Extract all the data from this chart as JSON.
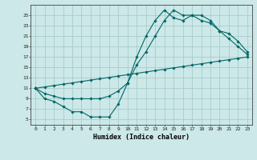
{
  "xlabel": "Humidex (Indice chaleur)",
  "bg_color": "#cce8e8",
  "grid_color": "#aacccc",
  "line_color": "#006666",
  "xlim": [
    -0.5,
    23.5
  ],
  "ylim": [
    4,
    27
  ],
  "xticks": [
    0,
    1,
    2,
    3,
    4,
    5,
    6,
    7,
    8,
    9,
    10,
    11,
    12,
    13,
    14,
    15,
    16,
    17,
    18,
    19,
    20,
    21,
    22,
    23
  ],
  "yticks": [
    5,
    7,
    9,
    11,
    13,
    15,
    17,
    19,
    21,
    23,
    25
  ],
  "curve1_x": [
    0,
    1,
    2,
    3,
    4,
    5,
    6,
    7,
    8,
    9,
    10,
    11,
    12,
    13,
    14,
    15,
    16,
    17,
    18,
    19,
    20,
    21,
    22,
    23
  ],
  "curve1_y": [
    11,
    9,
    8.5,
    7.5,
    6.5,
    6.5,
    5.5,
    5.5,
    5.5,
    8.0,
    12.0,
    17.0,
    21.0,
    24.0,
    26.0,
    24.5,
    24.0,
    25.0,
    24.0,
    23.5,
    22.0,
    20.5,
    19.0,
    17.5
  ],
  "curve2_x": [
    0,
    1,
    2,
    3,
    4,
    5,
    6,
    7,
    8,
    9,
    10,
    11,
    12,
    13,
    14,
    15,
    16,
    17,
    18,
    19,
    20,
    21,
    22,
    23
  ],
  "curve2_y": [
    11.0,
    11.26,
    11.52,
    11.78,
    12.04,
    12.3,
    12.57,
    12.83,
    13.09,
    13.35,
    13.61,
    13.87,
    14.13,
    14.39,
    14.65,
    14.91,
    15.17,
    15.43,
    15.7,
    15.96,
    16.22,
    16.48,
    16.74,
    17.0
  ],
  "curve3_x": [
    0,
    1,
    2,
    3,
    4,
    5,
    6,
    7,
    8,
    9,
    10,
    11,
    12,
    13,
    14,
    15,
    16,
    17,
    18,
    19,
    20,
    21,
    22,
    23
  ],
  "curve3_y": [
    11.0,
    10.0,
    9.5,
    9.0,
    9.0,
    9.0,
    9.0,
    9.0,
    9.5,
    10.5,
    12.0,
    15.5,
    18.0,
    21.0,
    24.0,
    26.0,
    25.0,
    25.0,
    25.0,
    24.0,
    22.0,
    21.5,
    20.0,
    18.0
  ]
}
